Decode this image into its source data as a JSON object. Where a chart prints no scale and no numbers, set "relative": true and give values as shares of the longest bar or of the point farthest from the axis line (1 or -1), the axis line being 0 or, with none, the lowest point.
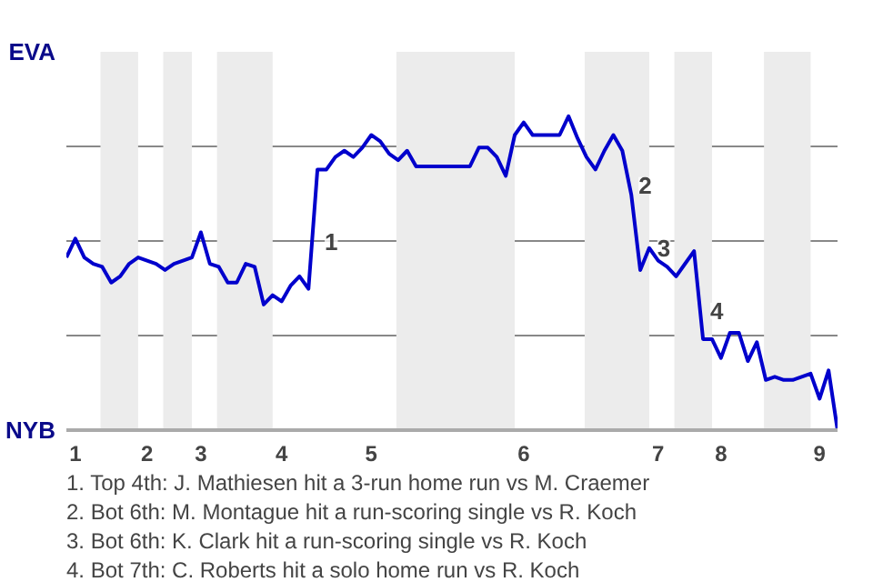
{
  "chart_data": {
    "type": "line",
    "relative": true,
    "categories": [
      null,
      "1",
      null,
      null,
      null,
      null,
      null,
      null,
      null,
      "2",
      null,
      null,
      null,
      null,
      null,
      "3",
      null,
      null,
      null,
      null,
      null,
      null,
      null,
      null,
      "4",
      null,
      null,
      null,
      null,
      null,
      null,
      null,
      null,
      null,
      "5",
      null,
      null,
      null,
      null,
      null,
      null,
      null,
      null,
      null,
      null,
      null,
      null,
      null,
      null,
      null,
      null,
      "6",
      null,
      null,
      null,
      null,
      null,
      null,
      null,
      null,
      null,
      null,
      null,
      null,
      null,
      null,
      "7",
      null,
      null,
      null,
      null,
      null,
      null,
      "8",
      null,
      null,
      null,
      null,
      null,
      null,
      null,
      null,
      null,
      null,
      "9",
      null,
      null
    ],
    "series": [
      {
        "color": "#0000cc",
        "values": [
          0.55,
          0.61,
          0.55,
          0.53,
          0.52,
          0.47,
          0.49,
          0.53,
          0.55,
          0.54,
          0.53,
          0.51,
          0.53,
          0.54,
          0.55,
          0.63,
          0.53,
          0.52,
          0.47,
          0.47,
          0.53,
          0.52,
          0.4,
          0.43,
          0.41,
          0.46,
          0.49,
          0.45,
          0.83,
          0.83,
          0.87,
          0.89,
          0.87,
          0.9,
          0.94,
          0.92,
          0.88,
          0.86,
          0.89,
          0.84,
          0.84,
          0.84,
          0.84,
          0.84,
          0.84,
          0.84,
          0.9,
          0.9,
          0.87,
          0.81,
          0.94,
          0.98,
          0.94,
          0.94,
          0.94,
          0.94,
          1,
          0.93,
          0.87,
          0.83,
          0.89,
          0.94,
          0.89,
          0.75,
          0.51,
          0.58,
          0.54,
          0.52,
          0.49,
          0.53,
          0.57,
          0.29,
          0.29,
          0.23,
          0.31,
          0.31,
          0.22,
          0.28,
          0.16,
          0.17,
          0.16,
          0.16,
          0.17,
          0.18,
          0.1,
          0.19,
          0
        ]
      }
    ],
    "grid": "y",
    "annotations": [
      "EVA",
      "NYB",
      {
        "text": "1",
        "y": 0.6
      },
      {
        "text": "2",
        "y": 0.78
      },
      {
        "text": "3",
        "y": 0.58
      },
      {
        "text": "4",
        "y": 0.38
      },
      "1. Top 4th: J. Mathiesen hit a 3-run home run vs M. Craemer",
      "2. Bot 6th: M. Montague hit a run-scoring single vs R. Koch",
      "3. Bot 6th: K. Clark hit a run-scoring single vs R. Koch",
      "4. Bot 7th: C. Roberts hit a solo home run vs R. Koch"
    ],
    "marker": "none",
    "line_style": "solid"
  }
}
